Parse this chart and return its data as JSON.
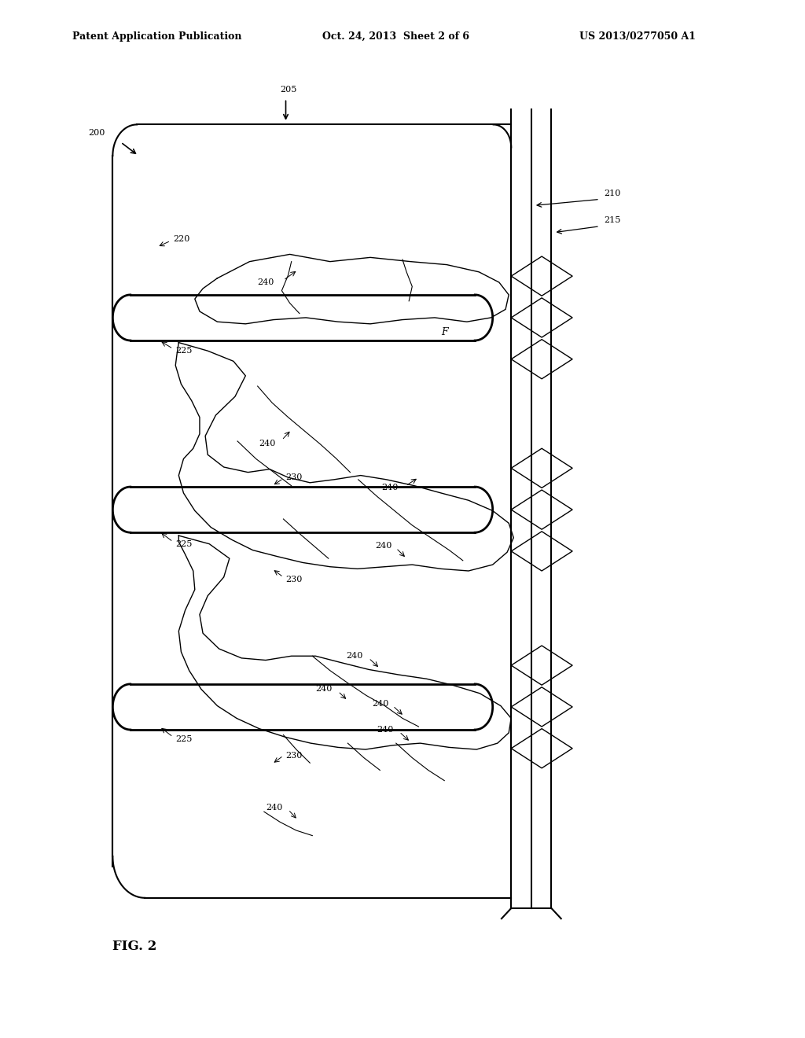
{
  "bg_color": "#ffffff",
  "line_color": "#000000",
  "header_text": "Patent Application Publication",
  "header_date": "Oct. 24, 2013  Sheet 2 of 6",
  "header_patent": "US 2013/0277050 A1",
  "fig_label": "FIG. 2",
  "title_fontsize": 9,
  "label_fontsize": 8,
  "fig_fontsize": 12
}
